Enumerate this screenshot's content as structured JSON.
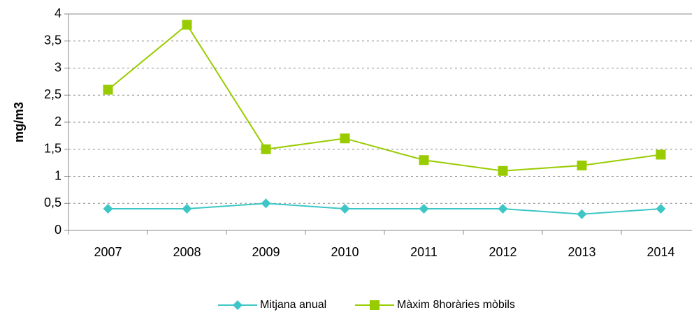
{
  "chart_data": {
    "type": "line",
    "y_label": "mg/m3",
    "categories": [
      "2007",
      "2008",
      "2009",
      "2010",
      "2011",
      "2012",
      "2013",
      "2014"
    ],
    "series": [
      {
        "name": "Mitjana anual",
        "color": "#3ec6c6",
        "marker": "diamond",
        "values": [
          0.4,
          0.4,
          0.5,
          0.4,
          0.4,
          0.4,
          0.3,
          0.4
        ]
      },
      {
        "name": "Màxim 8horàries mòbils",
        "color": "#99cc00",
        "marker": "square",
        "values": [
          2.6,
          3.8,
          1.5,
          1.7,
          1.3,
          1.1,
          1.2,
          1.4
        ]
      }
    ],
    "ylim": [
      0,
      4
    ],
    "yticks": [
      0,
      {
        "value": 0.5,
        "label": "0,5"
      },
      1,
      {
        "value": 1.5,
        "label": "1,5"
      },
      2,
      {
        "value": 2.5,
        "label": "2,5"
      },
      3,
      {
        "value": 3.5,
        "label": "3,5"
      },
      4
    ],
    "grid": true,
    "legend": "bottom"
  }
}
